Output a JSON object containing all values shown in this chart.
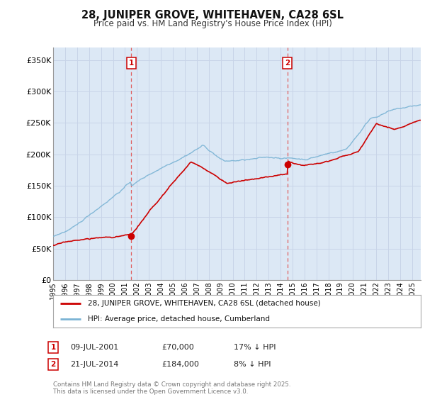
{
  "title": "28, JUNIPER GROVE, WHITEHAVEN, CA28 6SL",
  "subtitle": "Price paid vs. HM Land Registry's House Price Index (HPI)",
  "ylabel_ticks": [
    "£0",
    "£50K",
    "£100K",
    "£150K",
    "£200K",
    "£250K",
    "£300K",
    "£350K"
  ],
  "ytick_values": [
    0,
    50000,
    100000,
    150000,
    200000,
    250000,
    300000,
    350000
  ],
  "ylim": [
    0,
    370000
  ],
  "xlim_start": 1995.0,
  "xlim_end": 2025.7,
  "sale1": {
    "date_num": 2001.53,
    "price": 70000,
    "label": "1",
    "pct": "17% ↓ HPI",
    "date_str": "09-JUL-2001"
  },
  "sale2": {
    "date_num": 2014.55,
    "price": 184000,
    "label": "2",
    "pct": "8% ↓ HPI",
    "date_str": "21-JUL-2014"
  },
  "hpi_color": "#7ab3d4",
  "sale_color": "#cc0000",
  "dashed_line_color": "#e06060",
  "grid_color": "#c8d4e8",
  "background_color": "#dce8f5",
  "legend_label_red": "28, JUNIPER GROVE, WHITEHAVEN, CA28 6SL (detached house)",
  "legend_label_blue": "HPI: Average price, detached house, Cumberland",
  "footer": "Contains HM Land Registry data © Crown copyright and database right 2025.\nThis data is licensed under the Open Government Licence v3.0.",
  "xtick_years": [
    1995,
    1996,
    1997,
    1998,
    1999,
    2000,
    2001,
    2002,
    2003,
    2004,
    2005,
    2006,
    2007,
    2008,
    2009,
    2010,
    2011,
    2012,
    2013,
    2014,
    2015,
    2016,
    2017,
    2018,
    2019,
    2020,
    2021,
    2022,
    2023,
    2024,
    2025
  ]
}
